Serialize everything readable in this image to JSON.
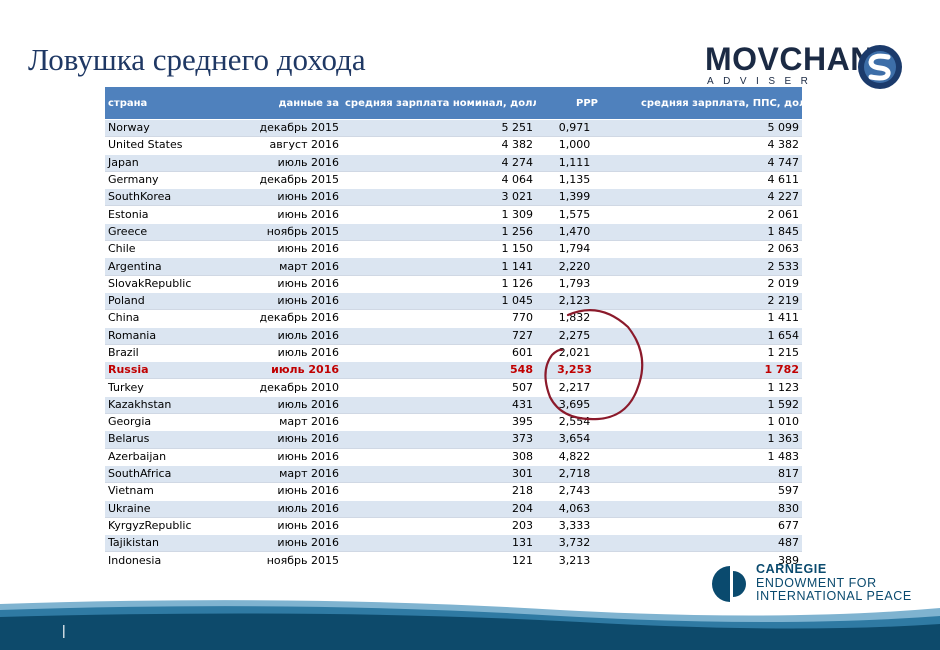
{
  "slide": {
    "title": "Ловушка среднего дохода",
    "page_marker": "|"
  },
  "logos": {
    "movchan_word": "MOVCHAN",
    "movchan_sub": "ADVISER",
    "carnegie_line1": "CARNEGIE",
    "carnegie_line2": "ENDOWMENT FOR",
    "carnegie_line3": "INTERNATIONAL PEACE"
  },
  "colors": {
    "header_bg": "#4f81bd",
    "band": "#dbe5f1",
    "highlight_text": "#c00000",
    "annotation_circle": "#8b1a2b",
    "footer": "#0d4a6b"
  },
  "table": {
    "headers": [
      "страна",
      "данные за",
      "средняя зарплата номинал, долл",
      "PPP",
      "средняя зарплата, ППС, долл"
    ],
    "rows": [
      [
        "Norway",
        "декабрь 2015",
        "5 251",
        "0,971",
        "5 099"
      ],
      [
        "United States",
        "август 2016",
        "4 382",
        "1,000",
        "4 382"
      ],
      [
        "Japan",
        "июль 2016",
        "4 274",
        "1,111",
        "4 747"
      ],
      [
        "Germany",
        "декабрь 2015",
        "4 064",
        "1,135",
        "4 611"
      ],
      [
        "SouthKorea",
        "июнь 2016",
        "3 021",
        "1,399",
        "4 227"
      ],
      [
        "Estonia",
        "июнь 2016",
        "1 309",
        "1,575",
        "2 061"
      ],
      [
        "Greece",
        "ноябрь 2015",
        "1 256",
        "1,470",
        "1 845"
      ],
      [
        "Chile",
        "июнь 2016",
        "1 150",
        "1,794",
        "2 063"
      ],
      [
        "Argentina",
        "март 2016",
        "1 141",
        "2,220",
        "2 533"
      ],
      [
        "SlovakRepublic",
        "июнь 2016",
        "1 126",
        "1,793",
        "2 019"
      ],
      [
        "Poland",
        "июнь 2016",
        "1 045",
        "2,123",
        "2 219"
      ],
      [
        "China",
        "декабрь 2016",
        "770",
        "1,832",
        "1 411"
      ],
      [
        "Romania",
        "июль 2016",
        "727",
        "2,275",
        "1 654"
      ],
      [
        "Brazil",
        "июль 2016",
        "601",
        "2,021",
        "1 215"
      ],
      [
        "Russia",
        "июль 2016",
        "548",
        "3,253",
        "1 782"
      ],
      [
        "Turkey",
        "декабрь 2010",
        "507",
        "2,217",
        "1 123"
      ],
      [
        "Kazakhstan",
        "июль 2016",
        "431",
        "3,695",
        "1 592"
      ],
      [
        "Georgia",
        "март 2016",
        "395",
        "2,554",
        "1 010"
      ],
      [
        "Belarus",
        "июнь 2016",
        "373",
        "3,654",
        "1 363"
      ],
      [
        "Azerbaijan",
        "июнь 2016",
        "308",
        "4,822",
        "1 483"
      ],
      [
        "SouthAfrica",
        "март 2016",
        "301",
        "2,718",
        "817"
      ],
      [
        "Vietnam",
        "июнь 2016",
        "218",
        "2,743",
        "597"
      ],
      [
        "Ukraine",
        "июль 2016",
        "204",
        "4,063",
        "830"
      ],
      [
        "KyrgyzRepublic",
        "июнь 2016",
        "203",
        "3,333",
        "677"
      ],
      [
        "Tajikistan",
        "июнь 2016",
        "131",
        "3,732",
        "487"
      ],
      [
        "Indonesia",
        "ноябрь 2015",
        "121",
        "3,213",
        "389"
      ]
    ],
    "highlight_row": 14
  }
}
